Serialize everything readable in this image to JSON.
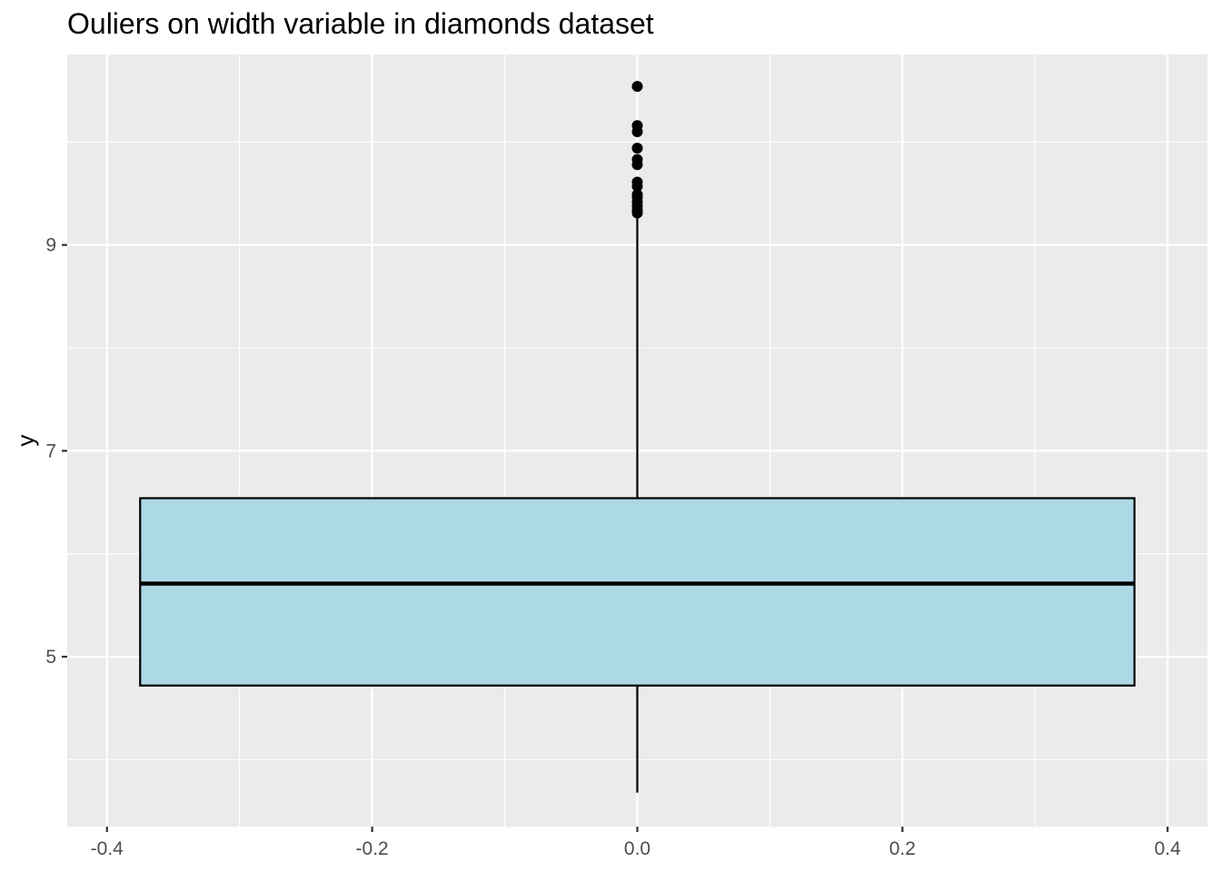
{
  "chart_data": {
    "type": "boxplot",
    "title": "Ouliers on width variable in diamonds dataset",
    "xlabel": "",
    "ylabel": "y",
    "xlim": [
      -0.43,
      0.43
    ],
    "ylim": [
      3.35,
      10.85
    ],
    "x_ticks": [
      -0.4,
      -0.2,
      0.0,
      0.2,
      0.4
    ],
    "x_tick_labels": [
      "-0.4",
      "-0.2",
      "0.0",
      "0.2",
      "0.4"
    ],
    "y_ticks": [
      5,
      7,
      9
    ],
    "y_tick_labels": [
      "5",
      "7",
      "9"
    ],
    "grid": true,
    "box": {
      "x_center": 0.0,
      "x_left": -0.375,
      "x_right": 0.375,
      "q1": 4.72,
      "median": 5.71,
      "q3": 6.54,
      "whisker_low": 3.68,
      "whisker_high": 9.26,
      "fill": "#ADD8E6",
      "outliers": [
        9.31,
        9.34,
        9.38,
        9.42,
        9.46,
        9.49,
        9.57,
        9.61,
        9.78,
        9.83,
        9.94,
        10.1,
        10.16,
        10.54
      ]
    },
    "colors": {
      "panel_background": "#EBEBEB",
      "grid": "#FFFFFF",
      "box_fill": "#ADD8E6",
      "line": "#000000",
      "tick_text": "#4D4D4D"
    }
  }
}
